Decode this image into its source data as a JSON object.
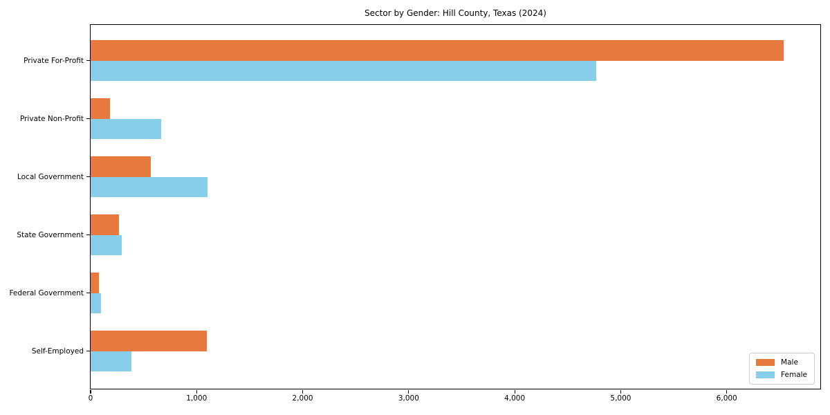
{
  "chart_data": {
    "type": "bar",
    "orientation": "horizontal",
    "title": "Sector by Gender: Hill County, Texas (2024)",
    "categories": [
      "Private For-Profit",
      "Private Non-Profit",
      "Local Government",
      "State Government",
      "Federal Government",
      "Self-Employed"
    ],
    "series": [
      {
        "name": "Male",
        "color": "#e8793e",
        "values": [
          6540,
          185,
          570,
          268,
          78,
          1095
        ]
      },
      {
        "name": "Female",
        "color": "#87ceeb",
        "values": [
          4770,
          665,
          1100,
          292,
          97,
          385
        ]
      }
    ],
    "xlim": [
      0,
      6880
    ],
    "xticks": [
      0,
      1000,
      2000,
      3000,
      4000,
      5000,
      6000
    ],
    "xtick_labels": [
      "0",
      "1,000",
      "2,000",
      "3,000",
      "4,000",
      "5,000",
      "6,000"
    ],
    "ylabel": "",
    "xlabel": "",
    "grid": false,
    "legend_position": "lower right",
    "axis_color": "#000000",
    "background_color": "#ffffff"
  }
}
